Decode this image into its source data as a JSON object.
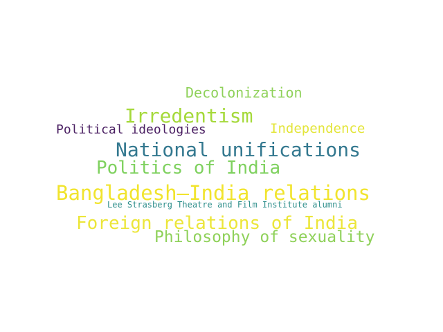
{
  "word_cloud": {
    "words": [
      {
        "id": "decolonization",
        "text": "Decolonization",
        "color": "#8fd15a"
      },
      {
        "id": "irredentism",
        "text": "Irredentism",
        "color": "#a5d93a"
      },
      {
        "id": "political_ideologies",
        "text": "Political ideologies",
        "color": "#4a1f62"
      },
      {
        "id": "independence",
        "text": "Independence",
        "color": "#e3e53a"
      },
      {
        "id": "national_unifications",
        "text": "National unifications",
        "color": "#33788f"
      },
      {
        "id": "politics_of_india",
        "text": "Politics of India",
        "color": "#7fd15f"
      },
      {
        "id": "bangladesh_india_relations",
        "text": "Bangladesh–India relations",
        "color": "#f1e42d"
      },
      {
        "id": "lee_strasberg",
        "text": "Lee Strasberg Theatre and Film Institute alumni",
        "color": "#2f8f8c"
      },
      {
        "id": "foreign_relations_of_india",
        "text": "Foreign relations of India",
        "color": "#ece63a"
      },
      {
        "id": "philosophy_of_sexuality",
        "text": "Philosophy of sexuality",
        "color": "#8fd15a"
      }
    ]
  }
}
